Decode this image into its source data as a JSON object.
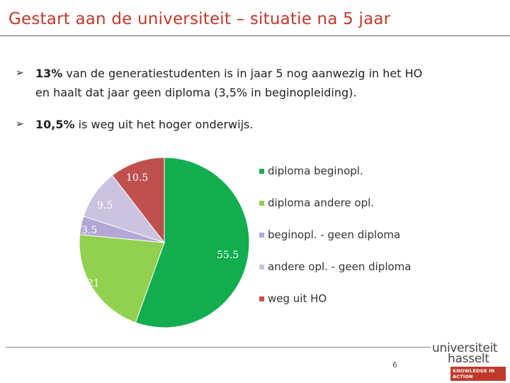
{
  "slide": {
    "title": "Gestart aan de universiteit – situatie na 5 jaar",
    "page_number": "6"
  },
  "bullets": [
    {
      "bold": "13%",
      "line1": " van de generatiestudenten is in jaar 5 nog aanwezig in het HO",
      "line2": "en haalt dat jaar geen diploma (3,5% in beginopleiding)."
    },
    {
      "bold": "10,5%",
      "line1": " is weg uit het hoger onderwijs."
    }
  ],
  "logo": {
    "line1": "universiteit",
    "line2": "hasselt",
    "tagline": "KNOWLEDGE IN ACTION"
  },
  "chart_data": {
    "type": "pie",
    "title": "",
    "categories": [
      "diploma beginopl.",
      "diploma andere opl.",
      "beginopl. - geen diploma",
      "andere opl. - geen diploma",
      "weg uit HO"
    ],
    "values": [
      55.5,
      21,
      3.5,
      9.5,
      10.5
    ],
    "labels": [
      "55.5",
      "21",
      "3.5",
      "9.5",
      "10.5"
    ],
    "colors": [
      "#11ad4f",
      "#92d050",
      "#b4a7d6",
      "#ccc3e0",
      "#c0504d"
    ],
    "legend_position": "right",
    "start_angle_deg": 0,
    "direction": "clockwise"
  }
}
